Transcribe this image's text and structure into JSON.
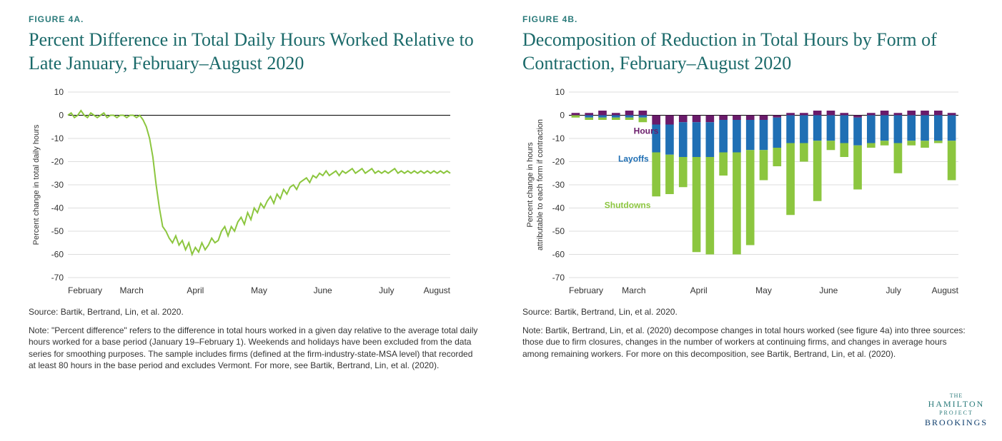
{
  "colors": {
    "title": "#1b6a6a",
    "line_series": "#8cc63f",
    "grid": "#dddddd",
    "zero": "#000000",
    "hours": "#6a1b6a",
    "layoffs": "#1f6fb4",
    "shutdowns": "#8cc63f",
    "text": "#333333",
    "bg": "#ffffff"
  },
  "figA": {
    "label": "FIGURE 4A.",
    "title": "Percent Difference in Total Daily Hours Worked Relative to Late January, February–August 2020",
    "ylabel": "Percent change in total daily hours",
    "ylim": [
      -70,
      10
    ],
    "ytick_step": 10,
    "x_months": [
      "February",
      "March",
      "April",
      "May",
      "June",
      "July",
      "August"
    ],
    "series": [
      0,
      1,
      -1,
      0,
      2,
      0,
      -1,
      1,
      0,
      -1,
      0,
      1,
      -1,
      0,
      0,
      -1,
      0,
      0,
      -1,
      0,
      0,
      -1,
      0,
      -2,
      -5,
      -10,
      -18,
      -30,
      -40,
      -48,
      -50,
      -53,
      -55,
      -52,
      -56,
      -54,
      -58,
      -55,
      -60,
      -57,
      -59,
      -55,
      -58,
      -56,
      -53,
      -55,
      -54,
      -50,
      -48,
      -52,
      -48,
      -50,
      -46,
      -44,
      -47,
      -42,
      -45,
      -40,
      -42,
      -38,
      -40,
      -37,
      -35,
      -38,
      -34,
      -36,
      -32,
      -34,
      -31,
      -30,
      -32,
      -29,
      -28,
      -27,
      -29,
      -26,
      -27,
      -25,
      -26,
      -24,
      -26,
      -25,
      -24,
      -26,
      -24,
      -25,
      -24,
      -23,
      -25,
      -24,
      -23,
      -25,
      -24,
      -23,
      -25,
      -24,
      -25,
      -24,
      -25,
      -24,
      -23,
      -25,
      -24,
      -25,
      -24,
      -25,
      -24,
      -25,
      -24,
      -25,
      -24,
      -25,
      -24,
      -25,
      -24,
      -25,
      -24,
      -25
    ],
    "source": "Source: Bartik, Bertrand, Lin, et al. 2020.",
    "note": "Note: \"Percent difference\" refers to the difference in total hours worked in a given day relative to the average total daily hours worked for a base period (January 19–February 1). Weekends and holidays have been excluded from the data series for smoothing purposes. The sample includes firms (defined at the firm-industry-state-MSA level) that recorded at least 80 hours in the base period and excludes Vermont. For more, see Bartik, Bertrand, Lin, et al. (2020)."
  },
  "figB": {
    "label": "FIGURE 4B.",
    "title": "Decomposition of Reduction in Total Hours by Form of Contraction, February–August 2020",
    "ylabel": "Percent change in hours attributable to each form if contraction",
    "ylim": [
      -70,
      10
    ],
    "ytick_step": 10,
    "x_months": [
      "February",
      "March",
      "April",
      "May",
      "June",
      "July",
      "August"
    ],
    "legend": {
      "hours": "Hours",
      "layoffs": "Layoffs",
      "shutdowns": "Shutdowns"
    },
    "weeks": [
      {
        "h_pos": 1,
        "h_neg": 0,
        "l": 0,
        "s": -1
      },
      {
        "h_pos": 1,
        "h_neg": 0,
        "l": -1,
        "s": -1
      },
      {
        "h_pos": 2,
        "h_neg": 0,
        "l": -1,
        "s": -1
      },
      {
        "h_pos": 1,
        "h_neg": 0,
        "l": -1,
        "s": -1
      },
      {
        "h_pos": 2,
        "h_neg": 0,
        "l": -1,
        "s": -1
      },
      {
        "h_pos": 2,
        "h_neg": 0,
        "l": -1,
        "s": -2
      },
      {
        "h_pos": 0,
        "h_neg": -4,
        "l": -12,
        "s": -19
      },
      {
        "h_pos": 0,
        "h_neg": -4,
        "l": -13,
        "s": -17
      },
      {
        "h_pos": 0,
        "h_neg": -3,
        "l": -15,
        "s": -13
      },
      {
        "h_pos": 0,
        "h_neg": -3,
        "l": -15,
        "s": -41
      },
      {
        "h_pos": 0,
        "h_neg": -3,
        "l": -15,
        "s": -42
      },
      {
        "h_pos": 0,
        "h_neg": -2,
        "l": -14,
        "s": -10
      },
      {
        "h_pos": 0,
        "h_neg": -2,
        "l": -14,
        "s": -44
      },
      {
        "h_pos": 0,
        "h_neg": -2,
        "l": -13,
        "s": -41
      },
      {
        "h_pos": 0,
        "h_neg": -2,
        "l": -13,
        "s": -13
      },
      {
        "h_pos": 0,
        "h_neg": -1,
        "l": -13,
        "s": -8
      },
      {
        "h_pos": 1,
        "h_neg": 0,
        "l": -12,
        "s": -31
      },
      {
        "h_pos": 1,
        "h_neg": 0,
        "l": -12,
        "s": -8
      },
      {
        "h_pos": 2,
        "h_neg": 0,
        "l": -11,
        "s": -26
      },
      {
        "h_pos": 2,
        "h_neg": 0,
        "l": -11,
        "s": -4
      },
      {
        "h_pos": 1,
        "h_neg": 0,
        "l": -12,
        "s": -6
      },
      {
        "h_pos": 0,
        "h_neg": -1,
        "l": -12,
        "s": -19
      },
      {
        "h_pos": 1,
        "h_neg": 0,
        "l": -12,
        "s": -2
      },
      {
        "h_pos": 2,
        "h_neg": 0,
        "l": -11,
        "s": -2
      },
      {
        "h_pos": 1,
        "h_neg": 0,
        "l": -12,
        "s": -13
      },
      {
        "h_pos": 2,
        "h_neg": 0,
        "l": -11,
        "s": -2
      },
      {
        "h_pos": 2,
        "h_neg": 0,
        "l": -11,
        "s": -3
      },
      {
        "h_pos": 2,
        "h_neg": 0,
        "l": -11,
        "s": -1
      },
      {
        "h_pos": 1,
        "h_neg": 0,
        "l": -11,
        "s": -17
      }
    ],
    "source": "Source: Bartik, Bertrand, Lin, et al. 2020.",
    "note": "Note: Bartik, Bertrand, Lin, et al. (2020) decompose changes in total hours worked (see figure 4a) into three sources: those due to firm closures, changes in the number of workers at continuing firms, and changes in average hours among remaining workers. For more on this decomposition, see Bartik, Bertrand, Lin, et al. (2020)."
  },
  "logo": {
    "hamilton_the": "THE",
    "hamilton": "HAMILTON",
    "hamilton_project": "PROJECT",
    "brookings": "BROOKINGS"
  }
}
